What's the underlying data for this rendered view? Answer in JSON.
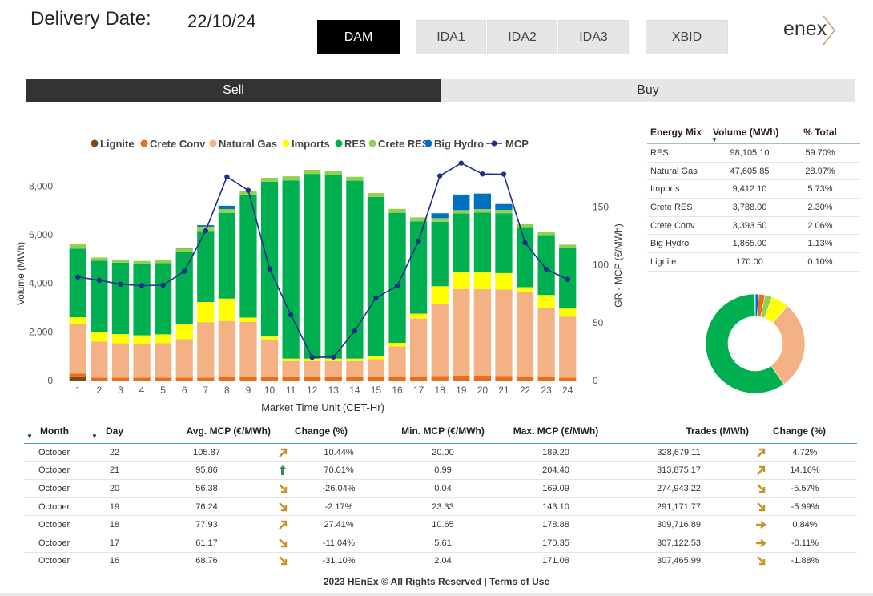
{
  "header": {
    "delivery_label": "Delivery Date:",
    "delivery_date": "22/10/24",
    "markets": [
      {
        "label": "DAM",
        "active": true
      },
      {
        "label": "IDA1",
        "active": false
      },
      {
        "label": "IDA2",
        "active": false
      },
      {
        "label": "IDA3",
        "active": false
      },
      {
        "label": "XBID",
        "active": false
      }
    ],
    "logo_text": "enex"
  },
  "side_tabs": {
    "sell": "Sell",
    "buy": "Buy",
    "active": "sell"
  },
  "colors": {
    "lignite": "#7a4a1a",
    "crete_conv": "#e86e1c",
    "natural_gas": "#f4b183",
    "imports": "#ffff00",
    "res": "#00b050",
    "crete_res": "#92d050",
    "big_hydro": "#0070c0",
    "mcp": "#1f2f8a",
    "dark_tab": "#333333"
  },
  "chart_data": {
    "type": "bar",
    "stacked": true,
    "xlabel": "Market Time Unit (CET-Hr)",
    "ylabel": "Volume (MWh)",
    "y2label": "GR - MCP (€/MWh)",
    "ylim": [
      0,
      8800
    ],
    "y2lim": [
      0,
      185
    ],
    "y_ticks": [
      0,
      2000,
      4000,
      6000,
      8000
    ],
    "y_tick_labels": [
      "0",
      "2,000",
      "4,000",
      "6,000",
      "8,000"
    ],
    "y2_ticks": [
      0,
      50,
      100,
      150
    ],
    "legend_position": "top",
    "categories": [
      "1",
      "2",
      "3",
      "4",
      "5",
      "6",
      "7",
      "8",
      "9",
      "10",
      "11",
      "12",
      "13",
      "14",
      "15",
      "16",
      "17",
      "18",
      "19",
      "20",
      "21",
      "22",
      "23",
      "24"
    ],
    "series": [
      {
        "name": "Lignite",
        "key": "lignite",
        "values": [
          170,
          0,
          0,
          0,
          0,
          0,
          0,
          0,
          0,
          0,
          0,
          0,
          0,
          0,
          0,
          0,
          0,
          0,
          0,
          0,
          0,
          0,
          0,
          0
        ]
      },
      {
        "name": "Crete Conv",
        "key": "crete_conv",
        "values": [
          110,
          120,
          120,
          120,
          120,
          120,
          120,
          140,
          150,
          150,
          150,
          150,
          150,
          150,
          150,
          150,
          160,
          180,
          200,
          200,
          190,
          160,
          150,
          120
        ]
      },
      {
        "name": "Natural Gas",
        "key": "natural_gas",
        "values": [
          2030,
          1480,
          1410,
          1400,
          1420,
          1580,
          2280,
          2310,
          2260,
          1540,
          650,
          650,
          650,
          650,
          730,
          1250,
          2390,
          2980,
          3560,
          3560,
          3550,
          3480,
          2830,
          2510
        ]
      },
      {
        "name": "Imports",
        "key": "imports",
        "values": [
          290,
          400,
          380,
          340,
          360,
          640,
          830,
          920,
          180,
          120,
          100,
          100,
          100,
          100,
          120,
          150,
          200,
          720,
          710,
          710,
          680,
          200,
          540,
          330
        ]
      },
      {
        "name": "RES",
        "key": "res",
        "values": [
          2830,
          2930,
          2940,
          2930,
          2930,
          2950,
          2920,
          3520,
          5060,
          6370,
          7330,
          7600,
          7540,
          7320,
          6550,
          5350,
          3800,
          2650,
          2400,
          2440,
          2460,
          2470,
          2460,
          2500
        ]
      },
      {
        "name": "Crete RES",
        "key": "crete_res",
        "values": [
          170,
          130,
          130,
          130,
          140,
          140,
          180,
          160,
          160,
          160,
          170,
          170,
          170,
          160,
          160,
          160,
          160,
          150,
          140,
          140,
          140,
          120,
          120,
          130
        ]
      },
      {
        "name": "Big Hydro",
        "key": "big_hydro",
        "values": [
          0,
          0,
          0,
          0,
          0,
          20,
          60,
          140,
          0,
          0,
          0,
          0,
          0,
          0,
          0,
          0,
          0,
          200,
          640,
          640,
          240,
          0,
          0,
          0
        ]
      }
    ],
    "line": {
      "name": "MCP",
      "key": "mcp",
      "values": [
        89.6,
        86.7,
        83.3,
        82.1,
        82.5,
        94.5,
        129.5,
        176.2,
        164.5,
        96.6,
        56.7,
        20.0,
        20.3,
        42.8,
        71.5,
        81.9,
        120.8,
        177.0,
        188.0,
        178.6,
        178.4,
        119.2,
        96.3,
        87.5
      ]
    }
  },
  "energy_mix": {
    "headers": [
      "Energy Mix",
      "Volume (MWh)",
      "% Total"
    ],
    "rows": [
      {
        "name": "RES",
        "volume": "98,105.10",
        "pct": "59.70%",
        "value": 59.7,
        "key": "res"
      },
      {
        "name": "Natural Gas",
        "volume": "47,605.85",
        "pct": "28.97%",
        "value": 28.97,
        "key": "natural_gas"
      },
      {
        "name": "Imports",
        "volume": "9,412.10",
        "pct": "5.73%",
        "value": 5.73,
        "key": "imports"
      },
      {
        "name": "Crete RES",
        "volume": "3,788.00",
        "pct": "2.30%",
        "value": 2.3,
        "key": "crete_res"
      },
      {
        "name": "Crete Conv",
        "volume": "3,393.50",
        "pct": "2.06%",
        "value": 2.06,
        "key": "crete_conv"
      },
      {
        "name": "Big Hydro",
        "volume": "1,865.00",
        "pct": "1.13%",
        "value": 1.13,
        "key": "big_hydro"
      },
      {
        "name": "Lignite",
        "volume": "170.00",
        "pct": "0.10%",
        "value": 0.1,
        "key": "lignite"
      }
    ]
  },
  "stats": {
    "headers": {
      "month": "Month",
      "day": "Day",
      "avg": "Avg. MCP (€/MWh)",
      "change1": "Change (%)",
      "min": "Min. MCP (€/MWh)",
      "max": "Max. MCP (€/MWh)",
      "trades": "Trades (MWh)",
      "change2": "Change (%)"
    },
    "rows": [
      {
        "month": "October",
        "day": "22",
        "avg": "105.87",
        "icon1": "arrow-up-right",
        "change1": "10.44%",
        "min": "20.00",
        "max": "189.20",
        "trades": "328,679.11",
        "icon2": "arrow-up-right",
        "change2": "4.72%"
      },
      {
        "month": "October",
        "day": "21",
        "avg": "95.86",
        "icon1": "arrow-up",
        "change1": "70.01%",
        "min": "0.99",
        "max": "204.40",
        "trades": "313,875.17",
        "icon2": "arrow-up-right",
        "change2": "14.16%"
      },
      {
        "month": "October",
        "day": "20",
        "avg": "56.38",
        "icon1": "arrow-down-right",
        "change1": "-26.04%",
        "min": "0.04",
        "max": "169.09",
        "trades": "274,943.22",
        "icon2": "arrow-down-right",
        "change2": "-5.57%"
      },
      {
        "month": "October",
        "day": "19",
        "avg": "76.24",
        "icon1": "arrow-down-right",
        "change1": "-2.17%",
        "min": "23.33",
        "max": "143.10",
        "trades": "291,171.77",
        "icon2": "arrow-down-right",
        "change2": "-5.99%"
      },
      {
        "month": "October",
        "day": "18",
        "avg": "77.93",
        "icon1": "arrow-up-right",
        "change1": "27.41%",
        "min": "10.65",
        "max": "178.88",
        "trades": "309,716.89",
        "icon2": "arrow-right",
        "change2": "0.84%"
      },
      {
        "month": "October",
        "day": "17",
        "avg": "61.17",
        "icon1": "arrow-down-right",
        "change1": "-11.04%",
        "min": "5.61",
        "max": "170.35",
        "trades": "307,122.53",
        "icon2": "arrow-right",
        "change2": "-0.11%"
      },
      {
        "month": "October",
        "day": "16",
        "avg": "68.76",
        "icon1": "arrow-down-right",
        "change1": "-31.10%",
        "min": "2.04",
        "max": "171.08",
        "trades": "307,465.99",
        "icon2": "arrow-down-right",
        "change2": "-1.88%"
      }
    ]
  },
  "footer": {
    "text": "2023 HEnEx © All Rights Reserved | ",
    "link": "Terms of Use"
  }
}
